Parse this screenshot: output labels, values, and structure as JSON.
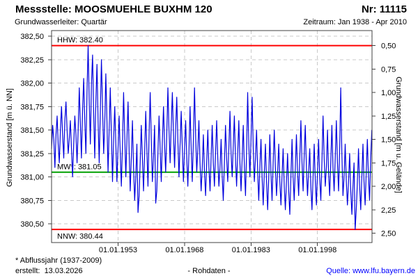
{
  "header": {
    "title_left": "Messstelle: MOOSMUEHLE BUXHM 120",
    "title_right": "Nr: 11115",
    "subtitle_left": "Grundwasserleiter: Quartär",
    "subtitle_right": "Zeitraum: Jan 1938 - Apr 2010"
  },
  "footer": {
    "footnote": "* Abflussjahr (1937-2009)",
    "created": "erstellt:  13.03.2026",
    "center": "- Rohdaten -",
    "source": "Quelle: www.lfu.bayern.de",
    "source_color": "#0000ff"
  },
  "chart_data": {
    "type": "line",
    "title": "Messstelle: MOOSMUEHLE BUXHM 120",
    "xlabel": "",
    "ylabel_left": "Grundwasserstand [m ü. NN]",
    "ylabel_right": "Grundwasserstand [m u. Gelände]",
    "xlim": [
      1938.0,
      2010.3
    ],
    "ylim_left": [
      380.3,
      382.56
    ],
    "right_axis_surface_elevation": 382.9,
    "grid": "dashed",
    "legend": "none",
    "frame_color": "#404040",
    "yticks_left": {
      "values": [
        380.5,
        380.75,
        381.0,
        381.25,
        381.5,
        381.75,
        382.0,
        382.25,
        382.5
      ],
      "labels": [
        "380,50",
        "380,75",
        "381,00",
        "381,25",
        "381,50",
        "381,75",
        "382,00",
        "382,25",
        "382,50"
      ]
    },
    "yticks_right": {
      "values": [
        0.5,
        0.75,
        1.0,
        1.25,
        1.5,
        1.75,
        2.0,
        2.25,
        2.5
      ],
      "labels": [
        "0,50",
        "0,75",
        "1,00",
        "1,25",
        "1,50",
        "1,75",
        "2,00",
        "2,25",
        "2,50"
      ]
    },
    "xticks": {
      "values": [
        1953.0,
        1968.0,
        1983.0,
        1998.0
      ],
      "labels": [
        "01.01.1953",
        "01.01.1968",
        "01.01.1983",
        "01.01.1998"
      ]
    },
    "reference_lines": [
      {
        "name": "HHW",
        "label": "HHW: 382.40",
        "value": 382.4,
        "color": "#ff0000",
        "label_position": "above"
      },
      {
        "name": "MW",
        "label": "MW*: 381.05",
        "value": 381.05,
        "color": "#00a000",
        "label_position": "above"
      },
      {
        "name": "NNW",
        "label": "NNW: 380.44",
        "value": 380.44,
        "color": "#ff0000",
        "label_position": "below"
      }
    ],
    "series": [
      {
        "name": "Rohdaten",
        "color": "#0000dd",
        "x_start": 1938.0,
        "x_step": 0.25,
        "values": [
          381.3,
          381.55,
          381.4,
          381.1,
          381.45,
          381.65,
          381.35,
          381.15,
          381.5,
          381.75,
          381.45,
          381.2,
          381.6,
          381.8,
          381.5,
          381.25,
          381.4,
          381.6,
          381.3,
          381.0,
          381.35,
          381.65,
          381.45,
          381.15,
          381.5,
          381.95,
          381.55,
          381.2,
          381.7,
          382.05,
          381.6,
          381.25,
          381.9,
          382.4,
          381.8,
          381.35,
          382.0,
          382.3,
          381.7,
          381.2,
          381.8,
          382.2,
          381.6,
          381.15,
          381.7,
          382.25,
          381.75,
          381.25,
          381.55,
          382.1,
          381.6,
          381.05,
          381.5,
          381.95,
          381.45,
          380.95,
          381.4,
          381.75,
          381.35,
          380.95,
          381.3,
          381.65,
          381.25,
          380.9,
          381.35,
          381.9,
          381.45,
          381.0,
          381.4,
          381.8,
          381.3,
          380.85,
          381.2,
          381.6,
          381.1,
          380.75,
          381.0,
          381.35,
          380.62,
          380.8,
          381.15,
          381.55,
          381.2,
          380.85,
          381.25,
          381.7,
          381.3,
          380.9,
          381.45,
          381.9,
          381.4,
          380.95,
          381.2,
          381.55,
          380.72,
          380.85,
          381.25,
          381.65,
          381.3,
          380.95,
          381.4,
          381.75,
          381.35,
          381.05,
          381.45,
          381.95,
          381.5,
          381.15,
          381.55,
          381.9,
          381.45,
          381.1,
          381.5,
          381.85,
          381.4,
          381.0,
          381.35,
          381.7,
          381.3,
          380.95,
          381.3,
          381.6,
          381.2,
          380.9,
          381.25,
          381.75,
          381.3,
          380.95,
          381.4,
          381.95,
          381.45,
          381.05,
          381.3,
          381.6,
          381.15,
          380.85,
          381.1,
          381.45,
          381.05,
          380.8,
          381.15,
          381.5,
          381.1,
          380.85,
          381.2,
          381.55,
          381.15,
          380.9,
          381.25,
          381.6,
          381.2,
          380.9,
          381.1,
          381.4,
          381.0,
          380.75,
          381.15,
          381.55,
          381.2,
          380.95,
          381.3,
          381.7,
          381.25,
          381.0,
          381.35,
          381.65,
          381.2,
          380.9,
          381.25,
          381.6,
          381.15,
          380.85,
          381.2,
          381.55,
          381.1,
          380.8,
          381.25,
          381.9,
          381.35,
          381.0,
          381.4,
          381.85,
          381.3,
          380.95,
          381.2,
          381.5,
          381.05,
          380.75,
          381.1,
          381.4,
          381.0,
          380.7,
          381.05,
          381.35,
          380.95,
          380.65,
          381.0,
          381.45,
          381.05,
          380.75,
          381.15,
          381.5,
          381.1,
          380.8,
          381.05,
          381.35,
          380.95,
          380.7,
          381.0,
          381.3,
          380.9,
          380.65,
          380.95,
          381.25,
          380.85,
          380.6,
          381.0,
          381.4,
          381.0,
          380.75,
          381.1,
          381.45,
          381.05,
          380.8,
          381.2,
          381.6,
          381.15,
          380.85,
          381.25,
          381.55,
          381.1,
          380.8,
          381.05,
          381.3,
          380.9,
          380.65,
          381.0,
          381.35,
          380.95,
          380.7,
          381.05,
          381.4,
          381.0,
          380.75,
          381.15,
          381.65,
          381.2,
          380.9,
          381.1,
          381.5,
          381.05,
          380.8,
          381.15,
          381.55,
          381.1,
          380.85,
          381.2,
          381.6,
          381.15,
          380.85,
          381.3,
          381.95,
          381.25,
          380.8,
          381.0,
          381.35,
          380.95,
          380.7,
          380.95,
          381.25,
          380.85,
          380.6,
          380.9,
          381.15,
          380.44,
          380.65,
          380.95,
          381.3,
          380.9,
          380.65,
          381.0,
          381.35,
          380.95,
          380.7,
          381.05,
          381.4,
          381.0,
          380.75,
          381.2,
          381.5
        ]
      }
    ]
  }
}
